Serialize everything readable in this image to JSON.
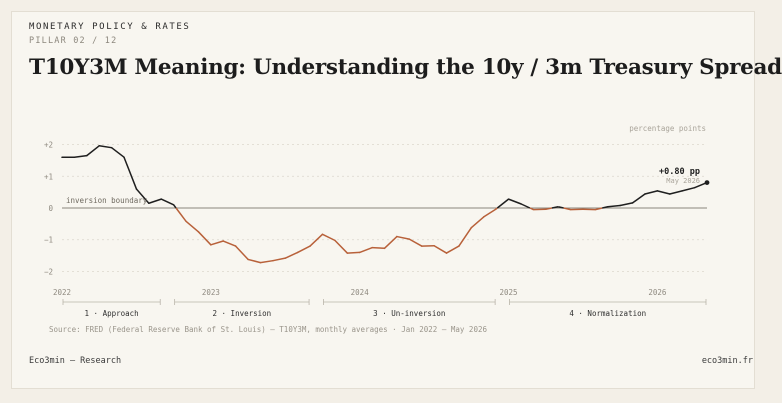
{
  "header": {
    "eyebrow": "MONETARY POLICY & RATES",
    "pillar": "PILLAR 02 / 12",
    "title": "T10Y3M Meaning: Understanding the 10y / 3m Treasury Spread"
  },
  "colors": {
    "positive_line": "#1f1f1f",
    "negative_line": "#b8613a",
    "zero_line": "#8a857b",
    "grid": "#dcd7cc"
  },
  "chart_data": {
    "type": "line",
    "title": "",
    "ylabel": "percentage points",
    "ylim": [
      -2.3,
      2.3
    ],
    "xlim": [
      "2022-01",
      "2026-05"
    ],
    "y_ticks": [
      "+2",
      "+1",
      "0",
      "−1",
      "−2"
    ],
    "x_ticks": [
      "2022",
      "2023",
      "2024",
      "2025",
      "2026"
    ],
    "zero_annotation": "inversion boundary",
    "last_value_label": "+0.80 pp",
    "last_date_label": "May 2026",
    "series": [
      {
        "x": [
          "2022-01",
          "2022-02",
          "2022-03",
          "2022-04",
          "2022-05",
          "2022-06",
          "2022-07",
          "2022-08",
          "2022-09",
          "2022-10",
          "2022-11",
          "2022-12",
          "2023-01",
          "2023-02",
          "2023-03",
          "2023-04",
          "2023-05",
          "2023-06",
          "2023-07",
          "2023-08",
          "2023-09",
          "2023-10",
          "2023-11",
          "2023-12",
          "2024-01",
          "2024-02",
          "2024-03",
          "2024-04",
          "2024-05",
          "2024-06",
          "2024-07",
          "2024-08",
          "2024-09",
          "2024-10",
          "2024-11",
          "2024-12",
          "2025-01",
          "2025-02",
          "2025-03",
          "2025-04",
          "2025-05",
          "2025-06",
          "2025-07",
          "2025-08",
          "2025-09",
          "2025-10",
          "2025-11",
          "2025-12",
          "2026-01",
          "2026-02",
          "2026-03",
          "2026-04",
          "2026-05"
        ],
        "values": [
          1.6,
          1.6,
          1.65,
          1.96,
          1.9,
          1.6,
          0.6,
          0.15,
          0.28,
          0.1,
          -0.42,
          -0.75,
          -1.16,
          -1.04,
          -1.2,
          -1.62,
          -1.72,
          -1.66,
          -1.58,
          -1.4,
          -1.2,
          -0.83,
          -1.02,
          -1.42,
          -1.4,
          -1.25,
          -1.27,
          -0.9,
          -0.98,
          -1.2,
          -1.19,
          -1.42,
          -1.2,
          -0.62,
          -0.28,
          -0.03,
          0.28,
          0.13,
          -0.05,
          -0.04,
          0.04,
          -0.05,
          -0.04,
          -0.05,
          0.04,
          0.08,
          0.16,
          0.44,
          0.54,
          0.44,
          0.54,
          0.64,
          0.8
        ]
      }
    ],
    "phases": [
      {
        "label": "1 · Approach",
        "start": "2022-01",
        "end": "2022-09"
      },
      {
        "label": "2 · Inversion",
        "start": "2022-10",
        "end": "2023-09"
      },
      {
        "label": "3 · Un-inversion",
        "start": "2023-10",
        "end": "2024-12"
      },
      {
        "label": "4 · Normalization",
        "start": "2025-01",
        "end": "2026-05"
      }
    ],
    "legend": "none",
    "grid": true
  },
  "source": "Source: FRED (Federal Reserve Bank of St. Louis) — T10Y3M, monthly averages · Jan 2022 – May 2026",
  "footer": {
    "left": "Eco3min — Research",
    "right": "eco3min.fr"
  }
}
